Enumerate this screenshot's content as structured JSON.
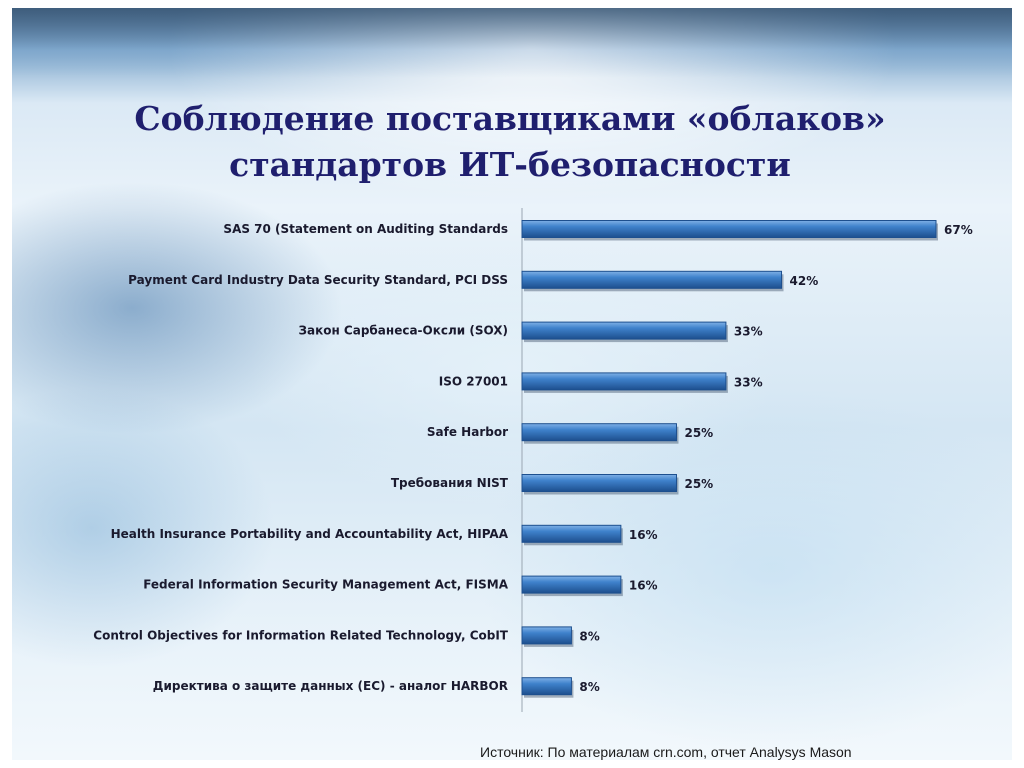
{
  "title": {
    "line1": "Соблюдение поставщиками «облаков»",
    "line2": "стандартов ИТ-безопасности"
  },
  "source": "Источник: По материалам crn.com, отчет Analysys Mason",
  "colors": {
    "bar": "#2e6db4",
    "bar_dark": "#1d4f8e",
    "title": "#1f1f6e",
    "text": "#1a1a2e"
  },
  "chart_data": {
    "type": "bar",
    "orientation": "horizontal",
    "categories": [
      "SAS 70 (Statement on Auditing Standards",
      "Payment Card Industry Data Security Standard, PCI DSS",
      "Закон Сарбанеса-Оксли (SOX)",
      "ISO 27001",
      "Safe Harbor",
      "Требования NIST",
      "Health Insurance Portability and Accountability Act, HIPAA",
      "Federal Information Security Management Act, FISMA",
      "Control Objectives for Information Related Technology, CobIT",
      "Директива о защите данных (ЕС) - аналог HARBOR"
    ],
    "values": [
      67,
      42,
      33,
      33,
      25,
      25,
      16,
      16,
      8,
      8
    ],
    "value_labels": [
      "67%",
      "42%",
      "33%",
      "33%",
      "25%",
      "25%",
      "16%",
      "16%",
      "8%",
      "8%"
    ],
    "xlim": [
      0,
      67
    ],
    "grid": false,
    "legend": "none"
  }
}
